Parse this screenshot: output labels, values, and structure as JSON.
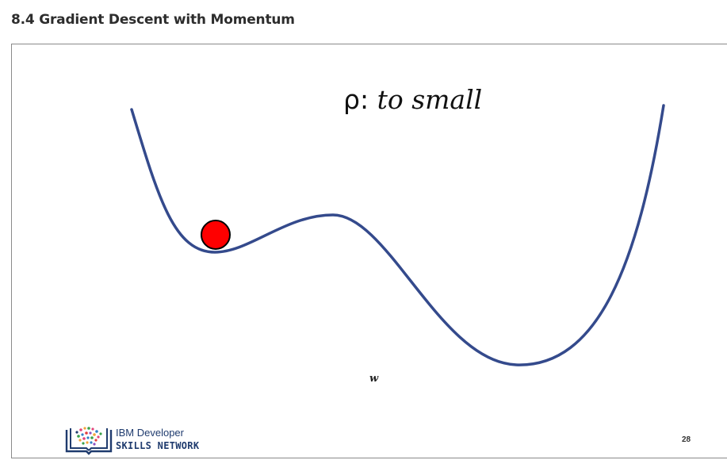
{
  "page": {
    "heading": "8.4 Gradient Descent with Momentum"
  },
  "slide": {
    "title_symbol": "ρ:",
    "title_text": "to small",
    "axis_label": "w",
    "page_number": "28",
    "logo": {
      "line1": "IBM Developer",
      "line2": "SKILLS NETWORK"
    },
    "curve_color": "#344a8c",
    "ball_color": "#ff0000"
  }
}
